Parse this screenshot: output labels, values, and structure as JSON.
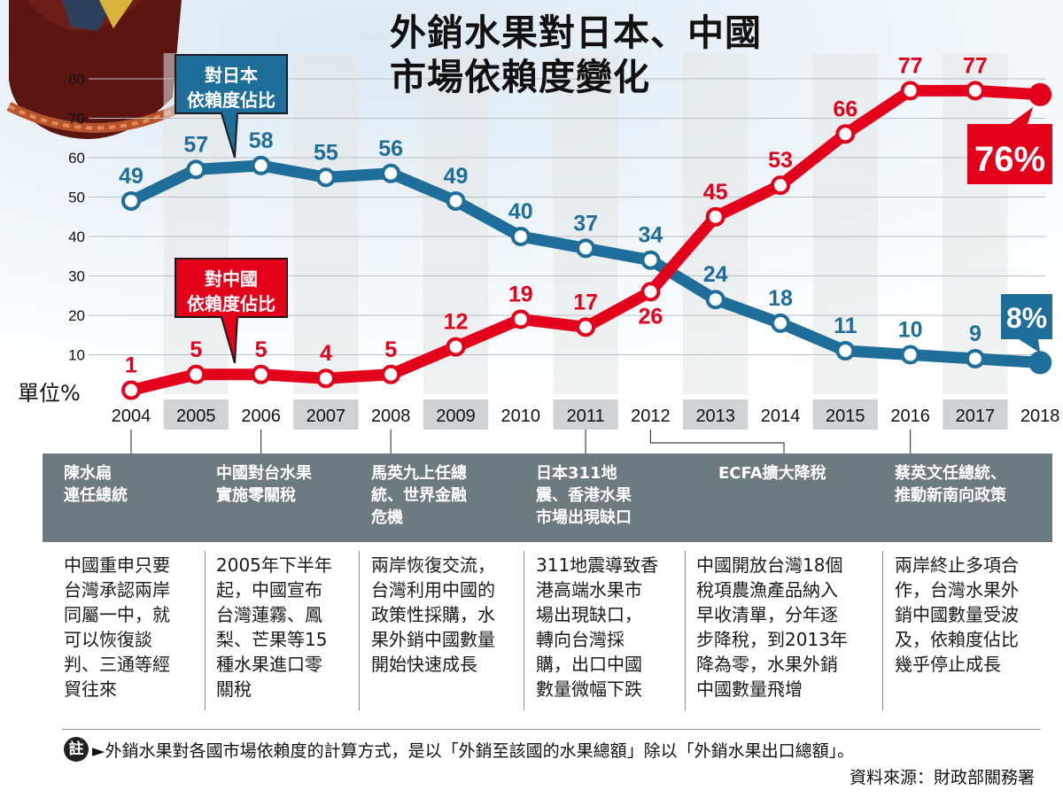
{
  "title": "外銷水果對日本、中國\n市場依賴度變化",
  "unit_label": "單位%",
  "chart_data": {
    "type": "line",
    "title": "外銷水果對日本、中國市場依賴度變化",
    "xlabel": "",
    "ylabel": "單位%",
    "ylim": [
      0,
      80
    ],
    "yticks": [
      10,
      20,
      30,
      40,
      50,
      60,
      70,
      80
    ],
    "x": [
      "2004",
      "2005",
      "2006",
      "2007",
      "2008",
      "2009",
      "2010",
      "2011",
      "2012",
      "2013",
      "2014",
      "2015",
      "2016",
      "2017",
      "2018"
    ],
    "series": [
      {
        "name": "對日本依賴度佔比",
        "color": "#1f6e99",
        "values": [
          49,
          57,
          58,
          55,
          56,
          49,
          40,
          37,
          34,
          24,
          18,
          11,
          10,
          9,
          8
        ],
        "labels": [
          "49",
          "57",
          "58",
          "55",
          "56",
          "49",
          "40",
          "37",
          "34",
          "24",
          "18",
          "11",
          "10",
          "9",
          "8%"
        ]
      },
      {
        "name": "對中國依賴度佔比",
        "color": "#e2001a",
        "values": [
          1,
          5,
          5,
          4,
          5,
          12,
          19,
          17,
          26,
          45,
          53,
          66,
          77,
          77,
          76
        ],
        "labels": [
          "1",
          "5",
          "5",
          "4",
          "5",
          "12",
          "19",
          "17",
          "26",
          "45",
          "53",
          "66",
          "77",
          "77",
          "76%"
        ]
      }
    ],
    "callouts": {
      "japan": "對日本\n依賴度佔比",
      "china": "對中國\n依賴度佔比"
    },
    "grid": true
  },
  "events": [
    {
      "title": "陳水扁\n連任總統",
      "desc": "中國重申只要\n台灣承認兩岸\n同屬一中，就\n可以恢復談\n判、三通等經\n貿往來"
    },
    {
      "title": "中國對台水果\n實施零關稅",
      "desc": "2005年下半年\n起，中國宣布\n台灣蓮霧、鳳\n梨、芒果等15\n種水果進口零\n關稅"
    },
    {
      "title": "馬英九上任總\n統、世界金融\n危機",
      "desc": "兩岸恢復交流，\n台灣利用中國的\n政策性採購，水\n果外銷中國數量\n開始快速成長"
    },
    {
      "title": "日本311地\n震、香港水果\n市場出現缺口",
      "desc": "311地震導致香\n港高端水果市\n場出現缺口，\n轉向台灣採\n購，出口中國\n數量微幅下跌"
    },
    {
      "title": "ECFA擴大降稅",
      "desc": "中國開放台灣18個\n稅項農漁產品納入\n早收清單，分年逐\n步降稅，到2013年\n降為零，水果外銷\n中國數量飛增"
    },
    {
      "title": "蔡英文任總統、\n推動新南向政策",
      "desc": "兩岸終止多項合\n作，台灣水果外\n銷中國數量受波\n及，依賴度佔比\n幾乎停止成長"
    }
  ],
  "note": {
    "badge": "註",
    "text": "►外銷水果對各國市場依賴度的計算方式，是以「外銷至該國的水果總額」除以「外銷水果出口總額」。"
  },
  "source": "資料來源：財政部關務署",
  "colors": {
    "japan": "#1f6e99",
    "china": "#e2001a",
    "panel": "#6d7a80",
    "band": "#e3e5e6",
    "axis_band": "#cfd3d5"
  }
}
